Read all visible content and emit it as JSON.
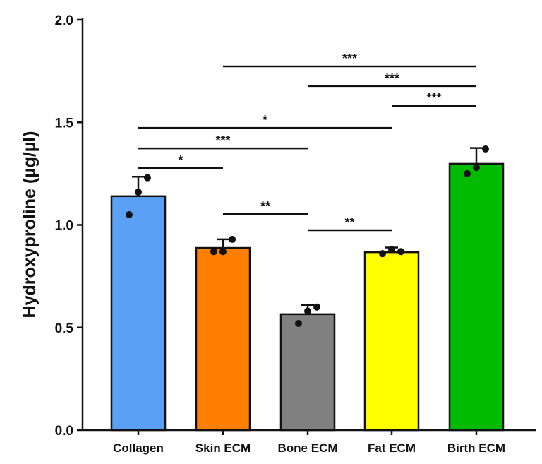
{
  "chart_data": {
    "type": "bar",
    "title": "",
    "xlabel": "",
    "ylabel": "Hydroxyproline (µg/µl)",
    "ylim": [
      0,
      2.0
    ],
    "yticks": [
      "0.0",
      "0.5",
      "1.0",
      "1.5",
      "2.0"
    ],
    "grid": false,
    "categories": [
      "Collagen",
      "Skin ECM",
      "Bone ECM",
      "Fat ECM",
      "Birth ECM"
    ],
    "values": [
      1.14,
      0.888,
      0.565,
      0.867,
      1.298
    ],
    "error_upper": [
      1.235,
      0.93,
      0.61,
      0.89,
      1.375
    ],
    "points": [
      [
        1.05,
        1.16,
        1.23
      ],
      [
        0.87,
        0.87,
        0.93
      ],
      [
        0.52,
        0.58,
        0.6
      ],
      [
        0.86,
        0.88,
        0.87
      ],
      [
        1.25,
        1.28,
        1.37
      ]
    ],
    "colors": [
      "#5aa0f5",
      "#ff8000",
      "#808080",
      "#ffff00",
      "#00bb00"
    ],
    "significance": [
      {
        "from": "Skin ECM",
        "to": "Birth ECM",
        "label": "***",
        "y": 1.773
      },
      {
        "from": "Bone ECM",
        "to": "Birth ECM",
        "label": "***",
        "y": 1.677
      },
      {
        "from": "Fat ECM",
        "to": "Birth ECM",
        "label": "***",
        "y": 1.58
      },
      {
        "from": "Collagen",
        "to": "Fat ECM",
        "label": "*",
        "y": 1.473
      },
      {
        "from": "Collagen",
        "to": "Bone ECM",
        "label": "***",
        "y": 1.373
      },
      {
        "from": "Collagen",
        "to": "Skin ECM",
        "label": "*",
        "y": 1.277
      },
      {
        "from": "Skin ECM",
        "to": "Bone ECM",
        "label": "**",
        "y": 1.053
      },
      {
        "from": "Bone ECM",
        "to": "Fat ECM",
        "label": "**",
        "y": 0.974
      }
    ]
  }
}
